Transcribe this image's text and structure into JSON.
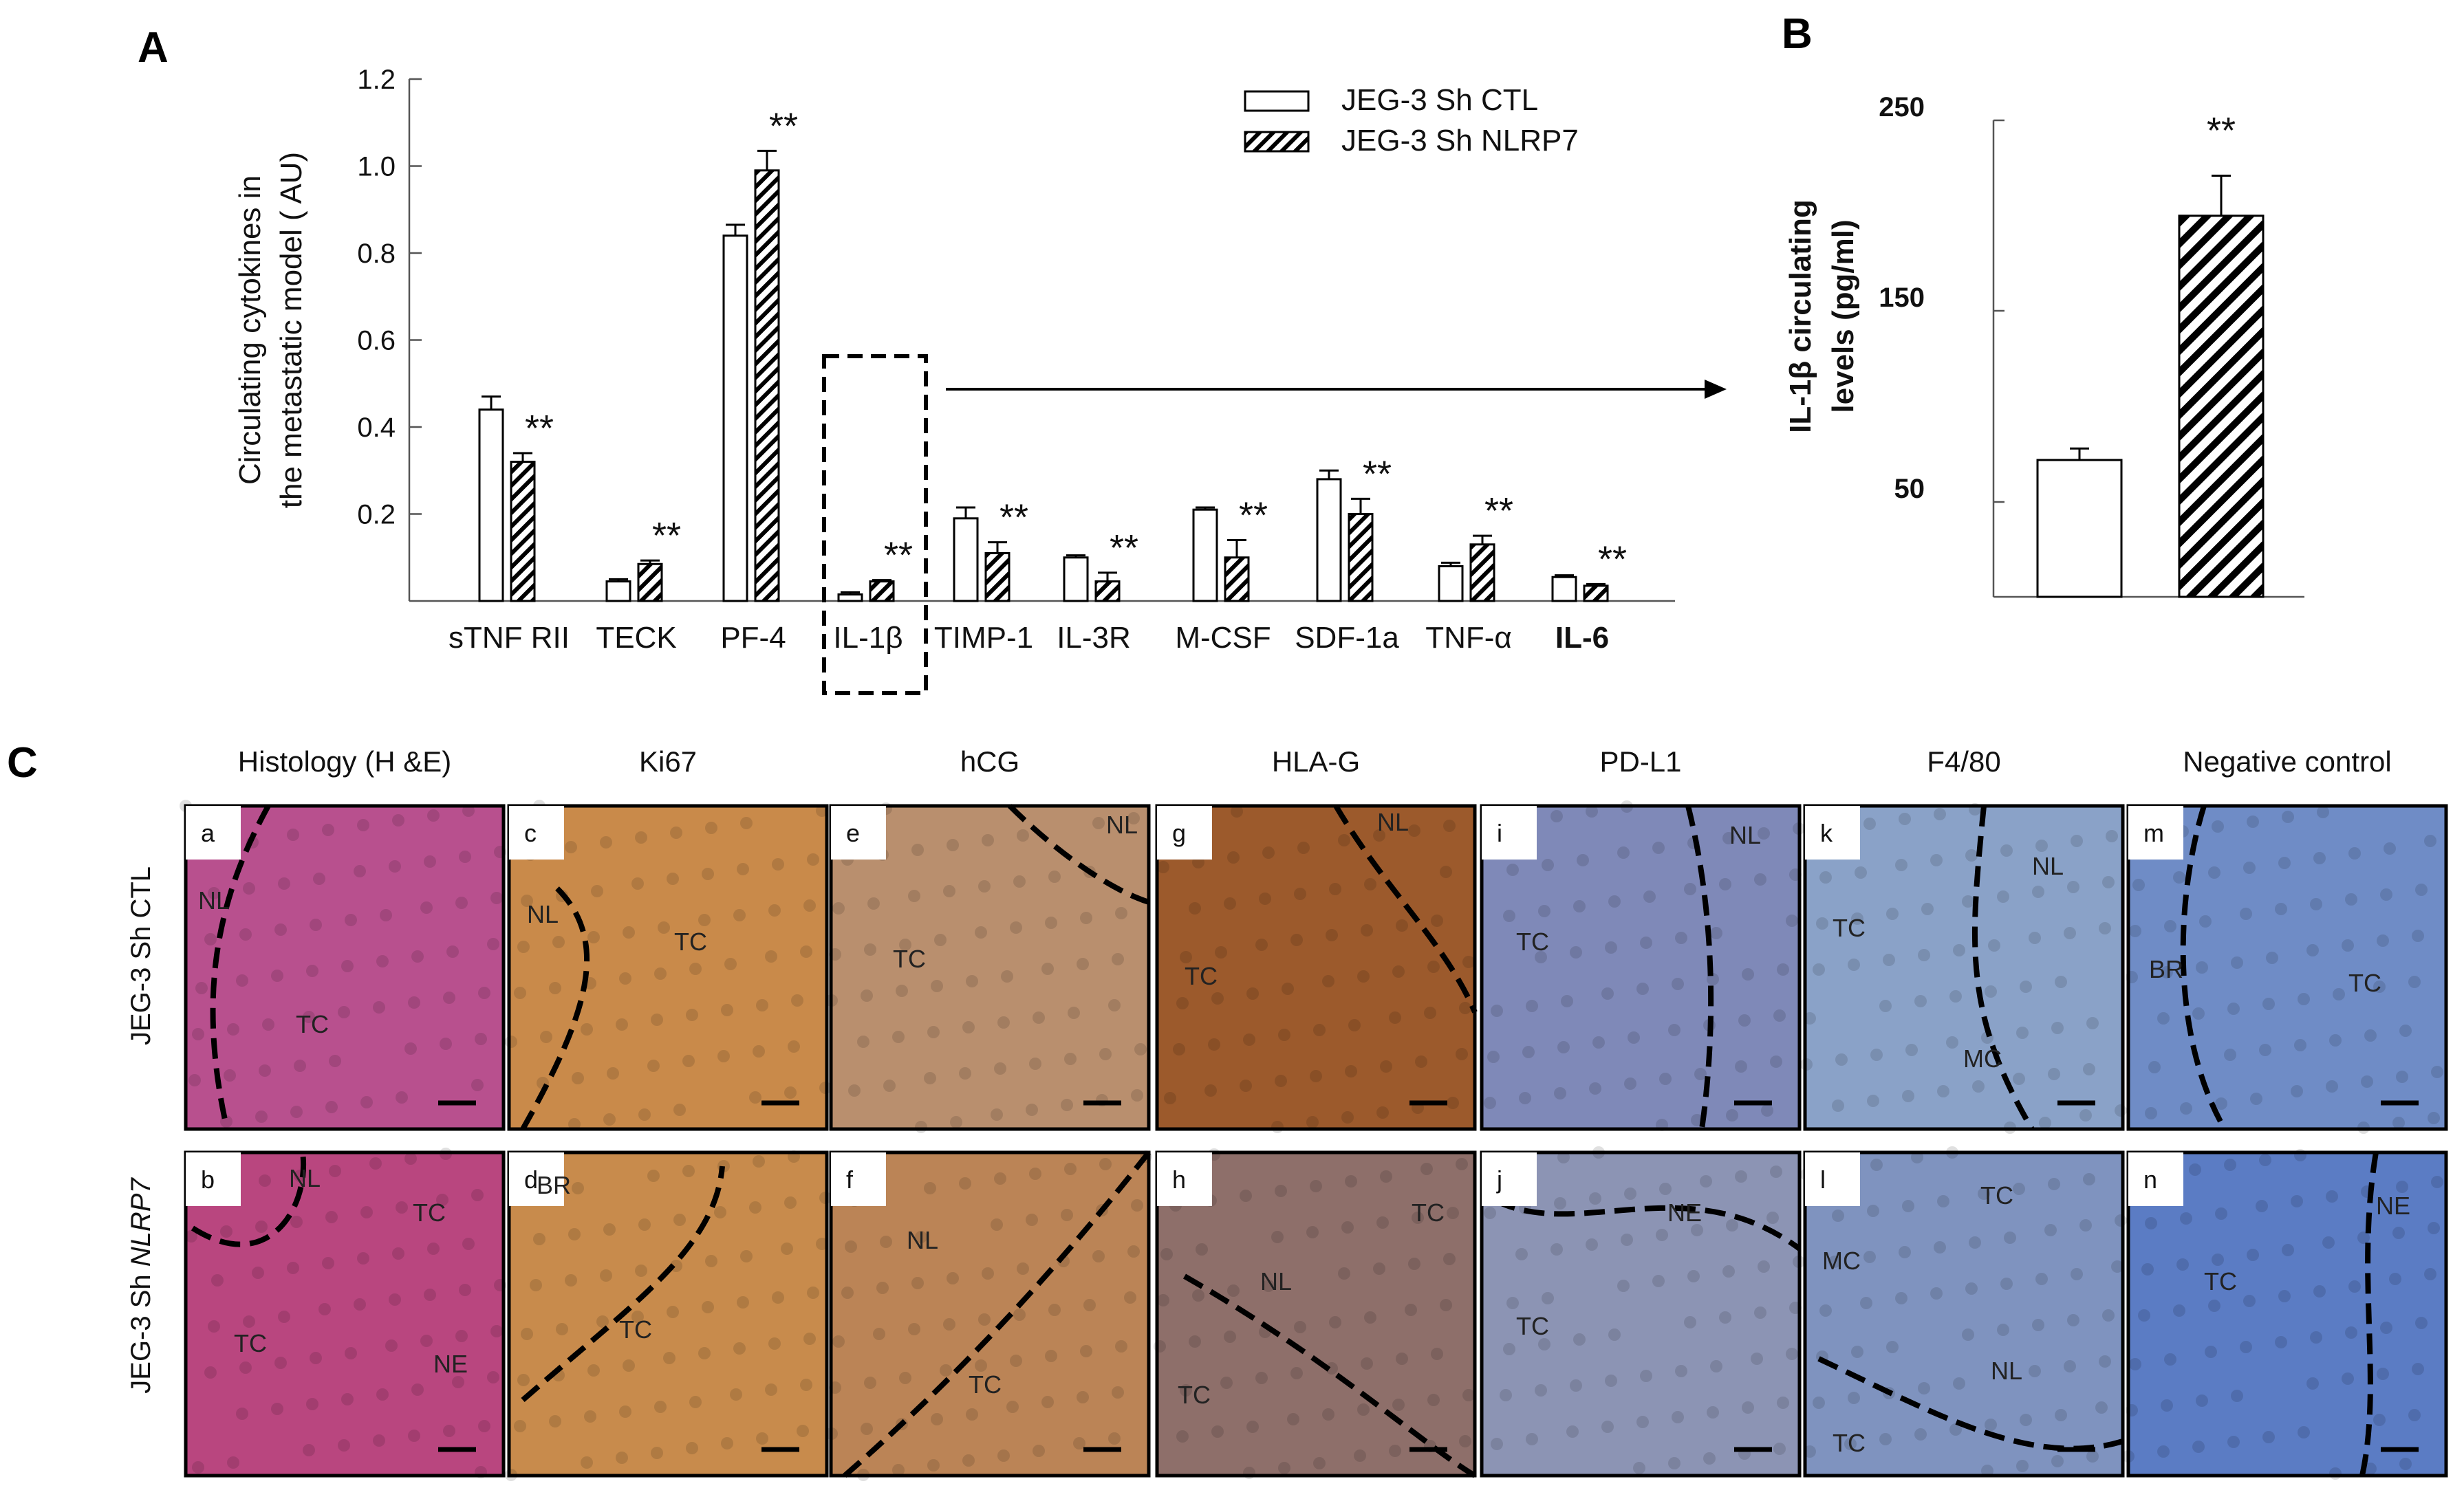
{
  "panel_a": {
    "letter": "A",
    "ylabel_line1": "Circulating cytokines in",
    "ylabel_line2": "the metastatic model ( AU)",
    "legend": [
      "JEG-3  Sh CTL",
      "JEG-3  Sh NLRP7"
    ]
  },
  "panel_b": {
    "letter": "B",
    "ylabel_line1": "IL-1β circulating",
    "ylabel_line2": "levels (pg/ml)"
  },
  "panel_c": {
    "letter": "C",
    "columns": [
      "Histology (H &E)",
      "Ki67",
      "hCG",
      "HLA-G",
      "PD-L1",
      "F4/80",
      "Negative control"
    ],
    "rows": [
      {
        "prefix": "JEG-3  Sh CTL",
        "suffix": ""
      },
      {
        "prefix": "JEG-3  Sh ",
        "suffix": "NLRP7"
      }
    ],
    "tiles": [
      {
        "letter": "a",
        "color": "#b8508e",
        "labels": [
          "NL",
          "TC"
        ]
      },
      {
        "letter": "c",
        "color": "#c98a4a",
        "labels": [
          "NL",
          "TC"
        ]
      },
      {
        "letter": "e",
        "color": "#b98f6e",
        "labels": [
          "NL",
          "TC"
        ]
      },
      {
        "letter": "g",
        "color": "#9c5a2c",
        "labels": [
          "NL",
          "TC"
        ]
      },
      {
        "letter": "i",
        "color": "#7f89b8",
        "labels": [
          "NL",
          "TC"
        ]
      },
      {
        "letter": "k",
        "color": "#8aa2c8",
        "labels": [
          "NL",
          "TC",
          "MC"
        ]
      },
      {
        "letter": "m",
        "color": "#6f8cc6",
        "labels": [
          "BR",
          "TC"
        ]
      },
      {
        "letter": "b",
        "color": "#b9467f",
        "labels": [
          "NL",
          "TC",
          "TC",
          "NE"
        ]
      },
      {
        "letter": "d",
        "color": "#c88b4c",
        "labels": [
          "BR",
          "TC"
        ]
      },
      {
        "letter": "f",
        "color": "#bb8456",
        "labels": [
          "NL",
          "TC"
        ]
      },
      {
        "letter": "h",
        "color": "#8e6f6a",
        "labels": [
          "TC",
          "NL",
          "TC"
        ]
      },
      {
        "letter": "j",
        "color": "#8c94b4",
        "labels": [
          "NE",
          "TC"
        ]
      },
      {
        "letter": "l",
        "color": "#7f93bf",
        "labels": [
          "TC",
          "MC",
          "NL",
          "TC"
        ]
      },
      {
        "letter": "n",
        "color": "#5b7cc4",
        "labels": [
          "TC",
          "NE"
        ]
      }
    ]
  },
  "chart_data": [
    {
      "type": "bar",
      "title": "",
      "xlabel": "",
      "ylabel": "Circulating cytokines in the metastatic model ( AU)",
      "ylim": [
        0,
        1.2
      ],
      "yticks": [
        "0.2",
        "0.4",
        "0.6",
        "0.8",
        "1.0",
        "1.2"
      ],
      "categories": [
        "sTNF RII",
        "TECK",
        "PF-4",
        "IL-1β",
        "TIMP-1",
        "IL-3R",
        "M-CSF",
        "SDF-1a",
        "TNF-α",
        "IL-6"
      ],
      "series": [
        {
          "name": "JEG-3  Sh CTL",
          "fill": "open",
          "values": [
            0.44,
            0.045,
            0.84,
            0.015,
            0.19,
            0.1,
            0.21,
            0.28,
            0.08,
            0.055
          ],
          "errors": [
            0.03,
            0.005,
            0.025,
            0.005,
            0.025,
            0.005,
            0.005,
            0.02,
            0.008,
            0.004
          ]
        },
        {
          "name": "JEG-3  Sh NLRP7",
          "fill": "hatched",
          "values": [
            0.32,
            0.085,
            0.99,
            0.045,
            0.11,
            0.045,
            0.1,
            0.2,
            0.13,
            0.035
          ],
          "errors": [
            0.02,
            0.008,
            0.045,
            0.003,
            0.025,
            0.02,
            0.04,
            0.035,
            0.02,
            0.004
          ]
        }
      ],
      "annotations": [
        "**",
        "**",
        "**",
        "**",
        "**",
        "**",
        "**",
        "**",
        "**",
        "**"
      ],
      "highlight_box": "IL-1β"
    },
    {
      "type": "bar",
      "title": "",
      "xlabel": "",
      "ylabel": "IL-1β circulating levels (pg/ml)",
      "ylim": [
        0,
        250
      ],
      "yticks": [
        "50",
        "150",
        "250"
      ],
      "categories": [
        "JEG-3  Sh CTL",
        "JEG-3  Sh NLRP7"
      ],
      "values": [
        72,
        200
      ],
      "errors": [
        6,
        21
      ],
      "fills": [
        "open",
        "hatched"
      ],
      "annotations": [
        "",
        "**"
      ]
    }
  ]
}
